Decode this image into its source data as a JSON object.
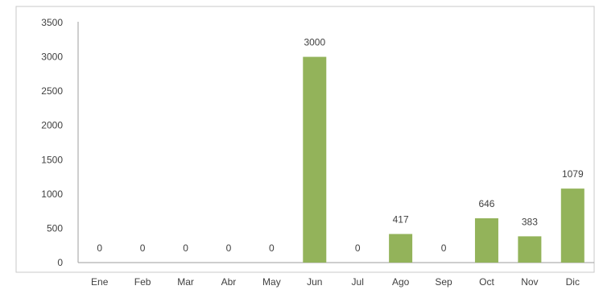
{
  "chart_data": {
    "type": "bar",
    "categories": [
      "Ene",
      "Feb",
      "Mar",
      "Abr",
      "May",
      "Jun",
      "Jul",
      "Ago",
      "Sep",
      "Oct",
      "Nov",
      "Dic"
    ],
    "values": [
      0,
      0,
      0,
      0,
      0,
      3000,
      0,
      417,
      0,
      646,
      383,
      1079
    ],
    "data_labels": [
      "0",
      "0",
      "0",
      "0",
      "0",
      "3000",
      "0",
      "417",
      "0",
      "646",
      "383",
      "1079"
    ],
    "yticks": [
      0,
      500,
      1000,
      1500,
      2000,
      2500,
      3000,
      3500
    ],
    "ylim": [
      0,
      3500
    ],
    "title": "",
    "xlabel": "",
    "ylabel": "",
    "grid": false,
    "legend": "none",
    "colors": {
      "bar": "#93B35A",
      "axis": "#9E9E9E",
      "border": "#C9C9C9",
      "text": "#404040"
    }
  }
}
